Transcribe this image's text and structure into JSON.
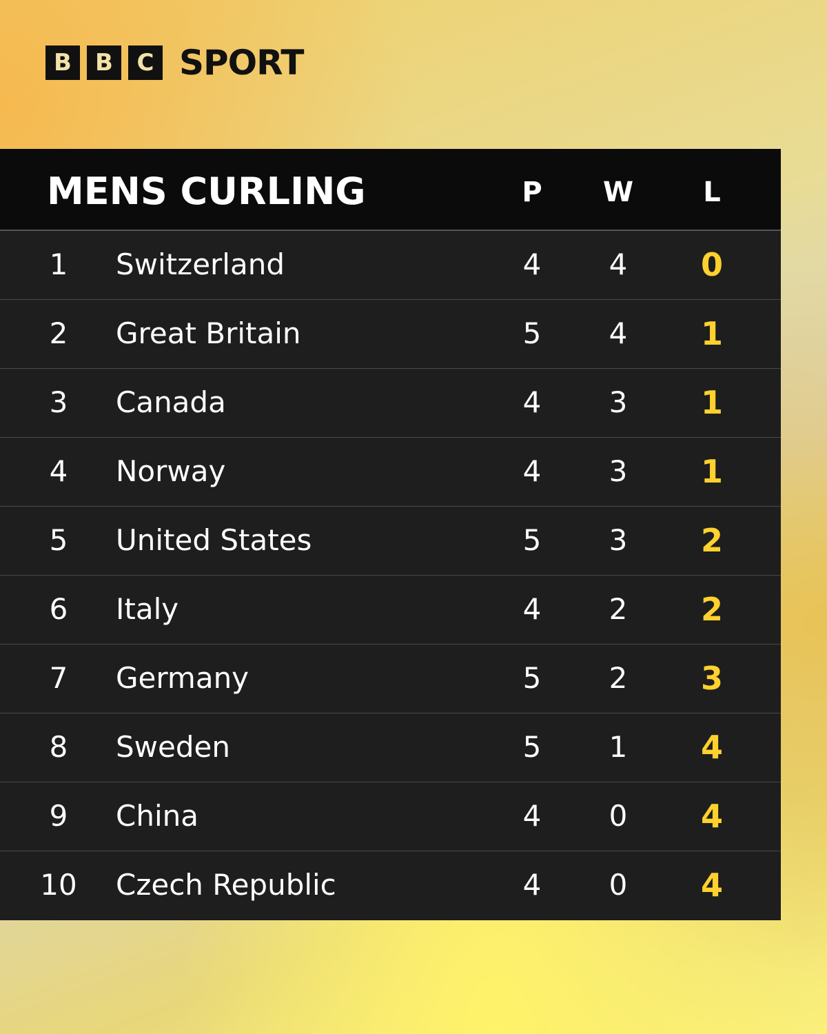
{
  "logo": {
    "letters": [
      "B",
      "B",
      "C"
    ],
    "text": "SPORT"
  },
  "table": {
    "title": "MENS CURLING",
    "columns": [
      "P",
      "W",
      "L"
    ],
    "rows": [
      [
        1,
        "Switzerland",
        4,
        4,
        0
      ],
      [
        2,
        "Great Britain",
        5,
        4,
        1
      ],
      [
        3,
        "Canada",
        4,
        3,
        1
      ],
      [
        4,
        "Norway",
        4,
        3,
        1
      ],
      [
        5,
        "United States",
        5,
        3,
        2
      ],
      [
        6,
        "Italy",
        4,
        2,
        2
      ],
      [
        7,
        "Germany",
        5,
        2,
        3
      ],
      [
        8,
        "Sweden",
        5,
        1,
        4
      ],
      [
        9,
        "China",
        4,
        0,
        4
      ],
      [
        10,
        "Czech Republic",
        4,
        0,
        4
      ]
    ]
  }
}
